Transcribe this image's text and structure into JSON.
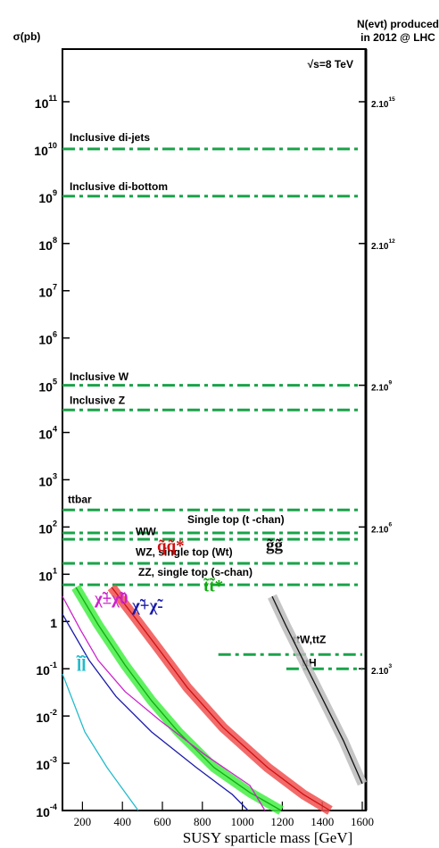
{
  "chart_data": {
    "type": "line",
    "ylabel": "σ(pb)",
    "y2label": [
      "N(evt) produced",
      "in 2012 @ LHC"
    ],
    "xlabel": "SUSY sparticle mass [GeV]",
    "annotation": "√s=8 TeV",
    "xlim": [
      100,
      1600
    ],
    "xticks": [
      200,
      400,
      600,
      800,
      1000,
      1200,
      1400,
      1600
    ],
    "ylim": [
      0.0001,
      1300000000000
    ],
    "log_y": true,
    "yticks": [
      {
        "value": 0.0001,
        "label": "10^-4"
      },
      {
        "value": 0.001,
        "label": "10^-3"
      },
      {
        "value": 0.01,
        "label": "10^-2"
      },
      {
        "value": 0.1,
        "label": "10^-1"
      },
      1,
      {
        "value": 10,
        "label": "10^1"
      },
      {
        "value": 100,
        "label": "10^2"
      },
      {
        "value": 1000,
        "label": "10^3"
      },
      {
        "value": 10000,
        "label": "10^4"
      },
      {
        "value": 100000,
        "label": "10^5"
      },
      {
        "value": 1000000,
        "label": "10^6"
      },
      {
        "value": 10000000,
        "label": "10^7"
      },
      {
        "value": 100000000,
        "label": "10^8"
      },
      {
        "value": 1000000000,
        "label": "10^9"
      },
      {
        "value": 10000000000,
        "label": "10^10"
      },
      {
        "value": 100000000000,
        "label": "10^11"
      }
    ],
    "y2lim": [
      2,
      26000000000000000
    ],
    "y2ticks": [
      {
        "value": 2000,
        "label": "2.10^3"
      },
      {
        "value": 2000000,
        "label": "2.10^6"
      },
      {
        "value": 2000000000,
        "label": "2.10^9"
      },
      {
        "value": 2000000000000,
        "label": "2.10^12"
      },
      {
        "value": 2000000000000000,
        "label": "2.10^15"
      }
    ],
    "series": [
      {
        "name": "Inclusive di-jets",
        "style": "dashdot",
        "color": "#1aa34a",
        "x": [
          100,
          1600
        ],
        "values": [
          10000000000,
          10000000000
        ]
      },
      {
        "name": "Inclusive di-bottom",
        "style": "dashdot",
        "color": "#1aa34a",
        "x": [
          100,
          1600
        ],
        "values": [
          1000000000,
          1000000000
        ]
      },
      {
        "name": "Inclusive W",
        "style": "dashdot",
        "color": "#1aa34a",
        "x": [
          100,
          1600
        ],
        "values": [
          100000,
          100000
        ]
      },
      {
        "name": "Inclusive Z",
        "style": "dashdot",
        "color": "#1aa34a",
        "x": [
          100,
          1600
        ],
        "values": [
          30000,
          30000
        ]
      },
      {
        "name": "ttbar",
        "style": "dashdot",
        "color": "#1aa34a",
        "x": [
          100,
          1600
        ],
        "values": [
          230,
          230
        ]
      },
      {
        "name": "Single top (t -chan)",
        "style": "dashdot",
        "color": "#1aa34a",
        "x": [
          100,
          1600
        ],
        "values": [
          75,
          75
        ]
      },
      {
        "name": "WW",
        "style": "dashdot",
        "color": "#1aa34a",
        "x": [
          100,
          1600
        ],
        "values": [
          55,
          55
        ]
      },
      {
        "name": "WZ, single top (Wt)",
        "style": "dashdot",
        "color": "#1aa34a",
        "x": [
          100,
          1600
        ],
        "values": [
          17,
          17
        ]
      },
      {
        "name": "ZZ, single top (s-chan)",
        "style": "dashdot",
        "color": "#1aa34a",
        "x": [
          100,
          1600
        ],
        "values": [
          6,
          6
        ]
      },
      {
        "name": "ttW,ttZ",
        "style": "dashdot",
        "color": "#1aa34a",
        "x": [
          880,
          1600
        ],
        "values": [
          0.2,
          0.2
        ]
      },
      {
        "name": "ttH",
        "style": "dashdot",
        "color": "#1aa34a",
        "x": [
          1220,
          1600
        ],
        "values": [
          0.1,
          0.1
        ]
      },
      {
        "name": "g̃g̃",
        "style": "band",
        "color": "#111111",
        "band_color": "#bbbbbb",
        "x": [
          1149,
          1216,
          1305,
          1395,
          1506,
          1600
        ],
        "values": [
          3.4,
          0.85,
          0.15,
          0.026,
          0.003,
          0.00037
        ]
      },
      {
        "name": "q̃q̃*",
        "style": "band",
        "color": "#d01010",
        "band_color": "#f05050",
        "x": [
          346,
          457,
          591,
          725,
          904,
          1127,
          1305,
          1439
        ],
        "values": [
          5.3,
          1.3,
          0.23,
          0.04,
          0.0057,
          0.00081,
          0.00022,
          0.0001
        ]
      },
      {
        "name": "t̃t̃*",
        "style": "band",
        "color": "#11aa11",
        "band_color": "#44ee44",
        "x": [
          167,
          279,
          413,
          546,
          680,
          859,
          1038,
          1194
        ],
        "values": [
          5.3,
          0.85,
          0.12,
          0.021,
          0.0046,
          0.00081,
          0.00024,
          0.0001
        ]
      },
      {
        "name": "χ̃±χ̃0",
        "style": "solid",
        "color": "#cc22cc",
        "x": [
          100,
          189,
          279,
          413,
          591,
          814,
          1038,
          1113
        ],
        "values": [
          3.4,
          0.68,
          0.15,
          0.033,
          0.0078,
          0.0015,
          0.00034,
          0.0001
        ]
      },
      {
        "name": "χ̃+χ̃-",
        "style": "solid",
        "color": "#1a1aaa",
        "x": [
          100,
          234,
          368,
          546,
          770,
          949,
          1029
        ],
        "values": [
          1.43,
          0.15,
          0.026,
          0.0046,
          0.00081,
          0.00022,
          0.0001
        ]
      },
      {
        "name": "l̃l̃",
        "style": "solid",
        "color": "#22bbcc",
        "x": [
          100,
          212,
          323,
          479
        ],
        "values": [
          0.078,
          0.0046,
          0.00081,
          0.0001
        ]
      }
    ]
  }
}
